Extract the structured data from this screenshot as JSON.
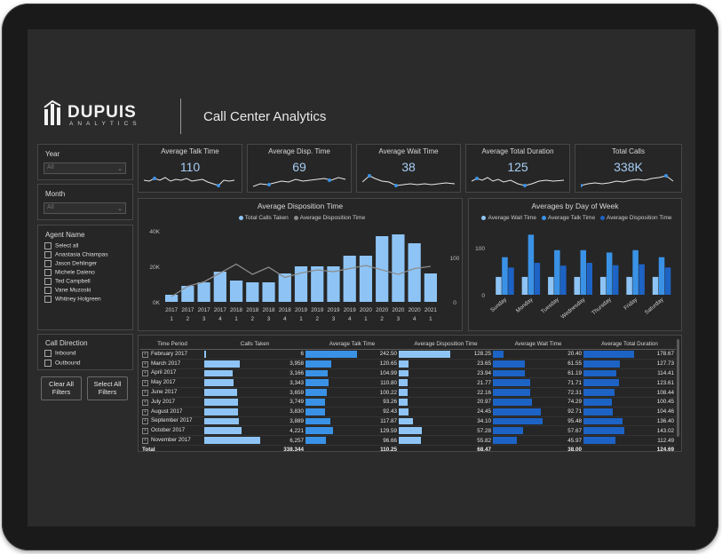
{
  "brand": {
    "name": "DUPUIS",
    "sub": "ANALYTICS"
  },
  "page_title": "Call Center Analytics",
  "filters": {
    "year": {
      "label": "Year",
      "value": "All"
    },
    "month": {
      "label": "Month",
      "value": "All"
    },
    "agent": {
      "label": "Agent Name",
      "options": [
        "Select all",
        "Anastasia Chiampas",
        "Jason Dehlinger",
        "Michele Daleno",
        "Ted Campbell",
        "Vane Muzoski",
        "Whitney Holgreen"
      ]
    },
    "direction": {
      "label": "Call Direction",
      "options": [
        "Inbound",
        "Outbound"
      ]
    },
    "clear_label": "Clear All Filters",
    "select_label": "Select All Filters"
  },
  "kpis": [
    {
      "title": "Average Talk Time",
      "value": "110"
    },
    {
      "title": "Average Disp. Time",
      "value": "69"
    },
    {
      "title": "Average Wait Time",
      "value": "38"
    },
    {
      "title": "Average Total Duration",
      "value": "125"
    },
    {
      "title": "Total Calls",
      "value": "338K"
    }
  ],
  "colors": {
    "light_blue": "#8ec4f5",
    "mid_blue": "#3a92e6",
    "dark_blue": "#1d63c5",
    "line_gray": "#8b8b8b",
    "kpi_value": "#a6cdf4"
  },
  "chart_data": [
    {
      "type": "bar",
      "title": "Average Disposition Time",
      "series": [
        {
          "name": "Total Calls Taken",
          "values": [
            4,
            9,
            11,
            17,
            12,
            11,
            11,
            16,
            20,
            20,
            20,
            26,
            26,
            37,
            38,
            33,
            16
          ]
        },
        {
          "name": "Average Disposition Time",
          "values": [
            12,
            35,
            45,
            65,
            85,
            62,
            78,
            55,
            65,
            72,
            68,
            75,
            82,
            72,
            62,
            75,
            80
          ]
        }
      ],
      "categories": [
        "2017 Q1",
        "2017 Q2",
        "2017 Q3",
        "2017 Q4",
        "2018 Q1",
        "2018 Q2",
        "2018 Q3",
        "2018 Q4",
        "2019 Q1",
        "2019 Q2",
        "2019 Q3",
        "2019 Q4",
        "2020 Q1",
        "2020 Q2",
        "2020 Q3",
        "2020 Q4",
        "2021 Q1"
      ],
      "tick_years": [
        "2017",
        "2017",
        "2017",
        "2017",
        "2018",
        "2018",
        "2018",
        "2018",
        "2019",
        "2019",
        "2019",
        "2019",
        "2020",
        "2020",
        "2020",
        "2020",
        "2021"
      ],
      "tick_quarters": [
        "1",
        "2",
        "3",
        "4",
        "1",
        "2",
        "3",
        "4",
        "1",
        "2",
        "3",
        "4",
        "1",
        "2",
        "3",
        "4",
        "1"
      ],
      "y_ticks": [
        "40K",
        "20K",
        "0K"
      ],
      "y2_ticks": [
        "100",
        "0"
      ],
      "ylim": [
        0,
        40
      ],
      "y2lim": [
        0,
        160
      ]
    },
    {
      "type": "bar",
      "title": "Averages by Day of Week",
      "categories": [
        "Sunday",
        "Monday",
        "Tuesday",
        "Wednesday",
        "Thursday",
        "Friday",
        "Saturday"
      ],
      "series": [
        {
          "name": "Average Wait Time",
          "values": [
            38,
            38,
            38,
            38,
            38,
            38,
            38
          ]
        },
        {
          "name": "Average Talk Time",
          "values": [
            80,
            128,
            95,
            95,
            90,
            95,
            80
          ]
        },
        {
          "name": "Average Disposition Time",
          "values": [
            58,
            68,
            62,
            68,
            63,
            65,
            58
          ]
        }
      ],
      "y_ticks": [
        "100",
        "0"
      ],
      "ylim": [
        0,
        140
      ]
    }
  ],
  "table": {
    "headers": [
      "Time Period",
      "Calls Taken",
      "Average Talk Time",
      "Average Disposition Time",
      "Average Wait Time",
      "Average Total Duration"
    ],
    "rows": [
      {
        "period": "February 2017",
        "calls": "6",
        "talk": "242.50",
        "disp": "128.25",
        "wait": "20.40",
        "total": "178.67"
      },
      {
        "period": "March 2017",
        "calls": "3,958",
        "talk": "120.65",
        "disp": "23.65",
        "wait": "61.55",
        "total": "127.73"
      },
      {
        "period": "April 2017",
        "calls": "3,166",
        "talk": "104.99",
        "disp": "23.94",
        "wait": "61.19",
        "total": "114.41"
      },
      {
        "period": "May 2017",
        "calls": "3,343",
        "talk": "110.80",
        "disp": "21.77",
        "wait": "71.71",
        "total": "123.61"
      },
      {
        "period": "June 2017",
        "calls": "3,659",
        "talk": "100.22",
        "disp": "22.16",
        "wait": "72.31",
        "total": "108.44"
      },
      {
        "period": "July 2017",
        "calls": "3,749",
        "talk": "93.26",
        "disp": "20.97",
        "wait": "74.29",
        "total": "100.45"
      },
      {
        "period": "August 2017",
        "calls": "3,830",
        "talk": "92.43",
        "disp": "24.45",
        "wait": "92.71",
        "total": "104.46"
      },
      {
        "period": "September 2017",
        "calls": "3,889",
        "talk": "117.87",
        "disp": "34.10",
        "wait": "95.48",
        "total": "136.40"
      },
      {
        "period": "October 2017",
        "calls": "4,221",
        "talk": "129.59",
        "disp": "57.28",
        "wait": "57.67",
        "total": "143.02"
      },
      {
        "period": "November 2017",
        "calls": "6,257",
        "talk": "96.66",
        "disp": "55.82",
        "wait": "45.97",
        "total": "112.49"
      }
    ],
    "total": {
      "period": "Total",
      "calls": "338,344",
      "talk": "110.25",
      "disp": "68.47",
      "wait": "38.00",
      "total": "124.69"
    }
  }
}
